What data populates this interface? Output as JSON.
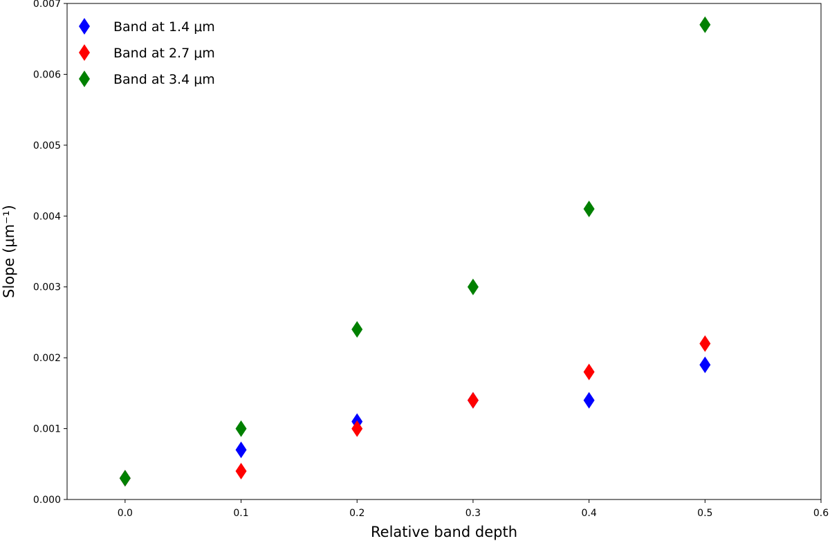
{
  "chart_data": {
    "type": "scatter",
    "title": "",
    "xlabel": "Relative band depth",
    "ylabel": "Slope (μm⁻¹)",
    "xlim": [
      -0.05,
      0.6
    ],
    "ylim": [
      0.0,
      0.007
    ],
    "xticks": [
      "0.0",
      "0.1",
      "0.2",
      "0.3",
      "0.4",
      "0.5",
      "0.6"
    ],
    "yticks": [
      "0.000",
      "0.001",
      "0.002",
      "0.003",
      "0.004",
      "0.005",
      "0.006",
      "0.007"
    ],
    "grid": false,
    "legend_position": "top-left",
    "marker": "diamond",
    "series": [
      {
        "name": "Band at 1.4 μm",
        "color": "#0000ff",
        "x": [
          0.0,
          0.1,
          0.2,
          0.3,
          0.4,
          0.5
        ],
        "y": [
          0.0003,
          0.0007,
          0.0011,
          0.0014,
          0.0014,
          0.0019
        ]
      },
      {
        "name": "Band at 2.7 μm",
        "color": "#ff0000",
        "x": [
          0.0,
          0.1,
          0.2,
          0.3,
          0.4,
          0.5
        ],
        "y": [
          0.0003,
          0.0004,
          0.001,
          0.0014,
          0.0018,
          0.0022
        ]
      },
      {
        "name": "Band at 3.4 μm",
        "color": "#008000",
        "x": [
          0.0,
          0.1,
          0.2,
          0.3,
          0.4,
          0.5
        ],
        "y": [
          0.0003,
          0.001,
          0.0024,
          0.003,
          0.0041,
          0.0067
        ]
      }
    ]
  }
}
